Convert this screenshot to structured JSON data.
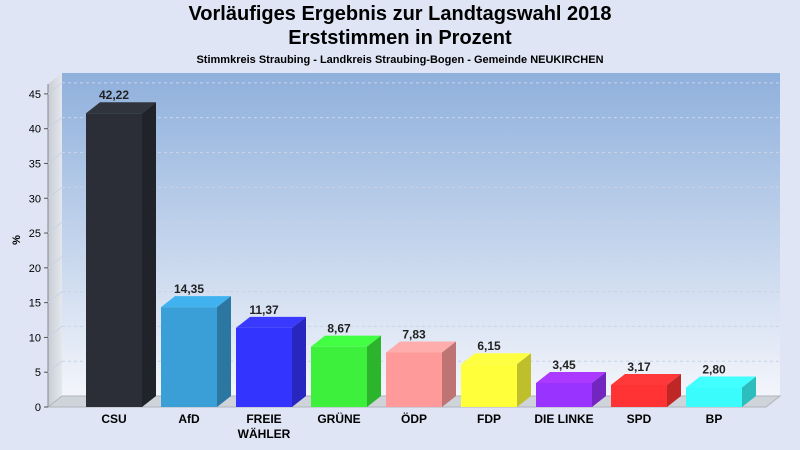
{
  "chart_data": {
    "type": "bar",
    "title": "Vorläufiges Ergebnis zur Landtagswahl 2018",
    "subtitle_main": "Erststimmen in Prozent",
    "subtitle": "Stimmkreis Straubing - Landkreis Straubing-Bogen - Gemeinde NEUKIRCHEN",
    "ylabel": "%",
    "xlabel": "",
    "ylim": [
      0,
      48
    ],
    "yticks": [
      0,
      5,
      10,
      15,
      20,
      25,
      30,
      35,
      40,
      45
    ],
    "grid": true,
    "categories": [
      "CSU",
      "AfD",
      "FREIE WÄHLER",
      "GRÜNE",
      "ÖDP",
      "FDP",
      "DIE LINKE",
      "SPD",
      "BP"
    ],
    "category_lines": [
      [
        "CSU"
      ],
      [
        "AfD"
      ],
      [
        "FREIE",
        "WÄHLER"
      ],
      [
        "GRÜNE"
      ],
      [
        "ÖDP"
      ],
      [
        "FDP"
      ],
      [
        "DIE LINKE"
      ],
      [
        "SPD"
      ],
      [
        "BP"
      ]
    ],
    "values": [
      42.22,
      14.35,
      11.37,
      8.67,
      7.83,
      6.15,
      3.45,
      3.17,
      2.8
    ],
    "value_labels": [
      "42,22",
      "14,35",
      "11,37",
      "8,67",
      "7,83",
      "6,15",
      "3,45",
      "3,17",
      "2,80"
    ],
    "colors": [
      "#2b2e36",
      "#3a9fd6",
      "#3434ff",
      "#3cf03c",
      "#ff9a9a",
      "#ffff3a",
      "#9933ff",
      "#ff3333",
      "#3afcfc"
    ]
  }
}
